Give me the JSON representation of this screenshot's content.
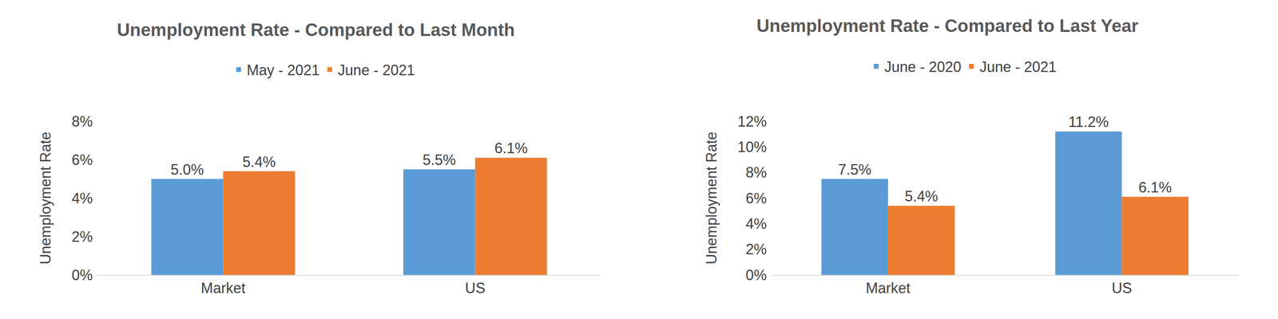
{
  "chart_data": [
    {
      "type": "bar",
      "title": "Unemployment Rate - Compared to Last Month",
      "y_label": "Unemployment Rate",
      "categories": [
        "Market",
        "US"
      ],
      "series": [
        {
          "name": "May - 2021",
          "color": "#5b9bd5",
          "values": [
            5.0,
            5.5
          ],
          "value_labels": [
            "5.0%",
            "5.5%"
          ]
        },
        {
          "name": "June - 2021",
          "color": "#ed7d31",
          "values": [
            5.4,
            6.1
          ],
          "value_labels": [
            "5.4%",
            "6.1%"
          ]
        }
      ],
      "ylim": [
        0,
        8
      ],
      "yticks": [
        {
          "value": 0,
          "label": "0%"
        },
        {
          "value": 2,
          "label": "2%"
        },
        {
          "value": 4,
          "label": "4%"
        },
        {
          "value": 6,
          "label": "6%"
        },
        {
          "value": 8,
          "label": "8%"
        }
      ],
      "grid": false,
      "legend": "top",
      "data_labels": true
    },
    {
      "type": "bar",
      "title": "Unemployment Rate - Compared to Last Year",
      "y_label": "Unemployment Rate",
      "categories": [
        "Market",
        "US"
      ],
      "series": [
        {
          "name": "June - 2020",
          "color": "#5b9bd5",
          "values": [
            7.5,
            11.2
          ],
          "value_labels": [
            "7.5%",
            "11.2%"
          ]
        },
        {
          "name": "June - 2021",
          "color": "#ed7d31",
          "values": [
            5.4,
            6.1
          ],
          "value_labels": [
            "5.4%",
            "6.1%"
          ]
        }
      ],
      "ylim": [
        0,
        12
      ],
      "yticks": [
        {
          "value": 0,
          "label": "0%"
        },
        {
          "value": 2,
          "label": "2%"
        },
        {
          "value": 4,
          "label": "4%"
        },
        {
          "value": 6,
          "label": "6%"
        },
        {
          "value": 8,
          "label": "8%"
        },
        {
          "value": 10,
          "label": "10%"
        },
        {
          "value": 12,
          "label": "12%"
        }
      ],
      "grid": false,
      "legend": "top",
      "data_labels": true
    }
  ]
}
